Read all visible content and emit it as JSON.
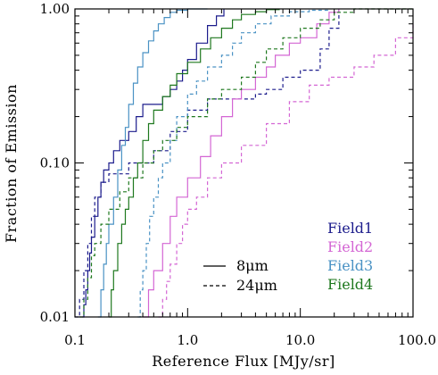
{
  "chart_data": {
    "type": "line",
    "xlabel": "Reference Flux [MJy/sr]",
    "ylabel": "Fraction of Emission",
    "xscale": "log",
    "yscale": "log",
    "xlim": [
      0.1,
      100.0
    ],
    "ylim": [
      0.01,
      1.0
    ],
    "x_ticks": [
      "0.1",
      "1.0",
      "10.0",
      "100.0"
    ],
    "y_ticks": [
      "0.01",
      "0.10",
      "1.00"
    ],
    "x_tick_values": [
      0.1,
      1.0,
      10.0,
      100.0
    ],
    "y_tick_values": [
      0.01,
      0.1,
      1.0
    ],
    "grid": false,
    "legend": {
      "linestyles": [
        {
          "style": "solid",
          "label": "8μm"
        },
        {
          "style": "dashed",
          "label": "24μm"
        }
      ],
      "fields": [
        {
          "label": "Field1",
          "color": "#1c1c8c"
        },
        {
          "label": "Field2",
          "color": "#d466d4"
        },
        {
          "label": "Field3",
          "color": "#4a92c4"
        },
        {
          "label": "Field4",
          "color": "#1e781e"
        }
      ]
    },
    "series": [
      {
        "name": "Field1",
        "band": "8μm",
        "color": "#1c1c8c",
        "dash": false,
        "points": [
          [
            0.117,
            0.01
          ],
          [
            0.12,
            0.012
          ],
          [
            0.125,
            0.015
          ],
          [
            0.13,
            0.02
          ],
          [
            0.135,
            0.026
          ],
          [
            0.14,
            0.033
          ],
          [
            0.15,
            0.045
          ],
          [
            0.16,
            0.06
          ],
          [
            0.17,
            0.075
          ],
          [
            0.18,
            0.09
          ],
          [
            0.2,
            0.1
          ],
          [
            0.22,
            0.12
          ],
          [
            0.25,
            0.14
          ],
          [
            0.3,
            0.16
          ],
          [
            0.35,
            0.2
          ],
          [
            0.4,
            0.24
          ],
          [
            0.5,
            0.24
          ],
          [
            0.6,
            0.27
          ],
          [
            0.7,
            0.3
          ],
          [
            0.8,
            0.34
          ],
          [
            0.9,
            0.4
          ],
          [
            1.0,
            0.47
          ],
          [
            1.2,
            0.6
          ],
          [
            1.5,
            0.78
          ],
          [
            1.8,
            0.9
          ],
          [
            2.1,
            1.0
          ]
        ]
      },
      {
        "name": "Field1",
        "band": "24μm",
        "color": "#1c1c8c",
        "dash": true,
        "points": [
          [
            0.1,
            0.01
          ],
          [
            0.11,
            0.013
          ],
          [
            0.12,
            0.02
          ],
          [
            0.13,
            0.03
          ],
          [
            0.14,
            0.045
          ],
          [
            0.15,
            0.06
          ],
          [
            0.17,
            0.075
          ],
          [
            0.2,
            0.085
          ],
          [
            0.3,
            0.1
          ],
          [
            0.4,
            0.1
          ],
          [
            0.5,
            0.12
          ],
          [
            0.7,
            0.16
          ],
          [
            1.0,
            0.22
          ],
          [
            1.5,
            0.26
          ],
          [
            2.0,
            0.26
          ],
          [
            3.0,
            0.26
          ],
          [
            4.0,
            0.28
          ],
          [
            5.0,
            0.3
          ],
          [
            7.0,
            0.36
          ],
          [
            10.0,
            0.4
          ],
          [
            15.0,
            0.55
          ],
          [
            18.0,
            0.75
          ],
          [
            22.0,
            1.0
          ]
        ]
      },
      {
        "name": "Field2",
        "band": "8μm",
        "color": "#d466d4",
        "dash": false,
        "points": [
          [
            0.4,
            0.01
          ],
          [
            0.45,
            0.015
          ],
          [
            0.5,
            0.02
          ],
          [
            0.6,
            0.03
          ],
          [
            0.7,
            0.045
          ],
          [
            0.8,
            0.06
          ],
          [
            1.0,
            0.08
          ],
          [
            1.3,
            0.11
          ],
          [
            1.6,
            0.15
          ],
          [
            2.0,
            0.2
          ],
          [
            2.5,
            0.26
          ],
          [
            3.0,
            0.3
          ],
          [
            4.0,
            0.36
          ],
          [
            5.0,
            0.42
          ],
          [
            6.0,
            0.5
          ],
          [
            8.0,
            0.6
          ],
          [
            10.0,
            0.65
          ],
          [
            14.0,
            0.8
          ],
          [
            18.0,
            0.95
          ],
          [
            22.0,
            1.0
          ]
        ]
      },
      {
        "name": "Field2",
        "band": "24μm",
        "color": "#d466d4",
        "dash": true,
        "points": [
          [
            0.55,
            0.01
          ],
          [
            0.6,
            0.013
          ],
          [
            0.65,
            0.017
          ],
          [
            0.7,
            0.022
          ],
          [
            0.8,
            0.03
          ],
          [
            0.9,
            0.04
          ],
          [
            1.0,
            0.05
          ],
          [
            1.2,
            0.06
          ],
          [
            1.5,
            0.08
          ],
          [
            2.0,
            0.1
          ],
          [
            3.0,
            0.13
          ],
          [
            5.0,
            0.18
          ],
          [
            8.0,
            0.25
          ],
          [
            12.0,
            0.32
          ],
          [
            18.0,
            0.36
          ],
          [
            30.0,
            0.42
          ],
          [
            45.0,
            0.5
          ],
          [
            70.0,
            0.65
          ],
          [
            100.0,
            0.8
          ]
        ]
      },
      {
        "name": "Field3",
        "band": "8μm",
        "color": "#4a92c4",
        "dash": false,
        "points": [
          [
            0.16,
            0.01
          ],
          [
            0.17,
            0.015
          ],
          [
            0.18,
            0.022
          ],
          [
            0.19,
            0.03
          ],
          [
            0.2,
            0.04
          ],
          [
            0.22,
            0.06
          ],
          [
            0.24,
            0.09
          ],
          [
            0.26,
            0.13
          ],
          [
            0.28,
            0.17
          ],
          [
            0.3,
            0.24
          ],
          [
            0.33,
            0.33
          ],
          [
            0.36,
            0.42
          ],
          [
            0.4,
            0.52
          ],
          [
            0.45,
            0.62
          ],
          [
            0.5,
            0.72
          ],
          [
            0.55,
            0.8
          ],
          [
            0.62,
            0.88
          ],
          [
            0.7,
            0.95
          ],
          [
            0.8,
            0.98
          ],
          [
            1.0,
            1.0
          ],
          [
            1.5,
            1.0
          ]
        ]
      },
      {
        "name": "Field3",
        "band": "24μm",
        "color": "#4a92c4",
        "dash": true,
        "points": [
          [
            0.36,
            0.01
          ],
          [
            0.38,
            0.015
          ],
          [
            0.4,
            0.02
          ],
          [
            0.43,
            0.03
          ],
          [
            0.46,
            0.045
          ],
          [
            0.5,
            0.06
          ],
          [
            0.55,
            0.08
          ],
          [
            0.6,
            0.1
          ],
          [
            0.7,
            0.14
          ],
          [
            0.8,
            0.2
          ],
          [
            1.0,
            0.28
          ],
          [
            1.2,
            0.34
          ],
          [
            1.5,
            0.42
          ],
          [
            2.0,
            0.5
          ],
          [
            2.5,
            0.6
          ],
          [
            3.0,
            0.7
          ],
          [
            4.0,
            0.8
          ],
          [
            5.5,
            0.9
          ],
          [
            8.0,
            0.96
          ],
          [
            12.0,
            0.98
          ],
          [
            18.0,
            1.0
          ]
        ]
      },
      {
        "name": "Field4",
        "band": "8μm",
        "color": "#1e781e",
        "dash": false,
        "points": [
          [
            0.2,
            0.01
          ],
          [
            0.21,
            0.015
          ],
          [
            0.22,
            0.02
          ],
          [
            0.24,
            0.03
          ],
          [
            0.26,
            0.04
          ],
          [
            0.28,
            0.05
          ],
          [
            0.3,
            0.06
          ],
          [
            0.33,
            0.08
          ],
          [
            0.36,
            0.1
          ],
          [
            0.4,
            0.14
          ],
          [
            0.45,
            0.18
          ],
          [
            0.5,
            0.22
          ],
          [
            0.6,
            0.27
          ],
          [
            0.7,
            0.32
          ],
          [
            0.8,
            0.38
          ],
          [
            1.0,
            0.45
          ],
          [
            1.3,
            0.55
          ],
          [
            1.6,
            0.65
          ],
          [
            2.0,
            0.75
          ],
          [
            2.5,
            0.85
          ],
          [
            3.0,
            0.92
          ],
          [
            4.0,
            0.96
          ],
          [
            5.0,
            0.99
          ],
          [
            6.5,
            1.0
          ]
        ]
      },
      {
        "name": "Field4",
        "band": "24μm",
        "color": "#1e781e",
        "dash": true,
        "points": [
          [
            0.11,
            0.01
          ],
          [
            0.12,
            0.013
          ],
          [
            0.13,
            0.018
          ],
          [
            0.14,
            0.025
          ],
          [
            0.15,
            0.03
          ],
          [
            0.17,
            0.04
          ],
          [
            0.2,
            0.05
          ],
          [
            0.25,
            0.065
          ],
          [
            0.3,
            0.08
          ],
          [
            0.4,
            0.1
          ],
          [
            0.5,
            0.12
          ],
          [
            0.6,
            0.14
          ],
          [
            0.8,
            0.17
          ],
          [
            1.0,
            0.2
          ],
          [
            1.5,
            0.26
          ],
          [
            2.0,
            0.3
          ],
          [
            3.0,
            0.36
          ],
          [
            4.0,
            0.45
          ],
          [
            5.0,
            0.55
          ],
          [
            7.0,
            0.65
          ],
          [
            10.0,
            0.75
          ],
          [
            15.0,
            0.85
          ],
          [
            20.0,
            0.95
          ],
          [
            30.0,
            1.0
          ],
          [
            100.0,
            1.0
          ]
        ]
      }
    ]
  }
}
